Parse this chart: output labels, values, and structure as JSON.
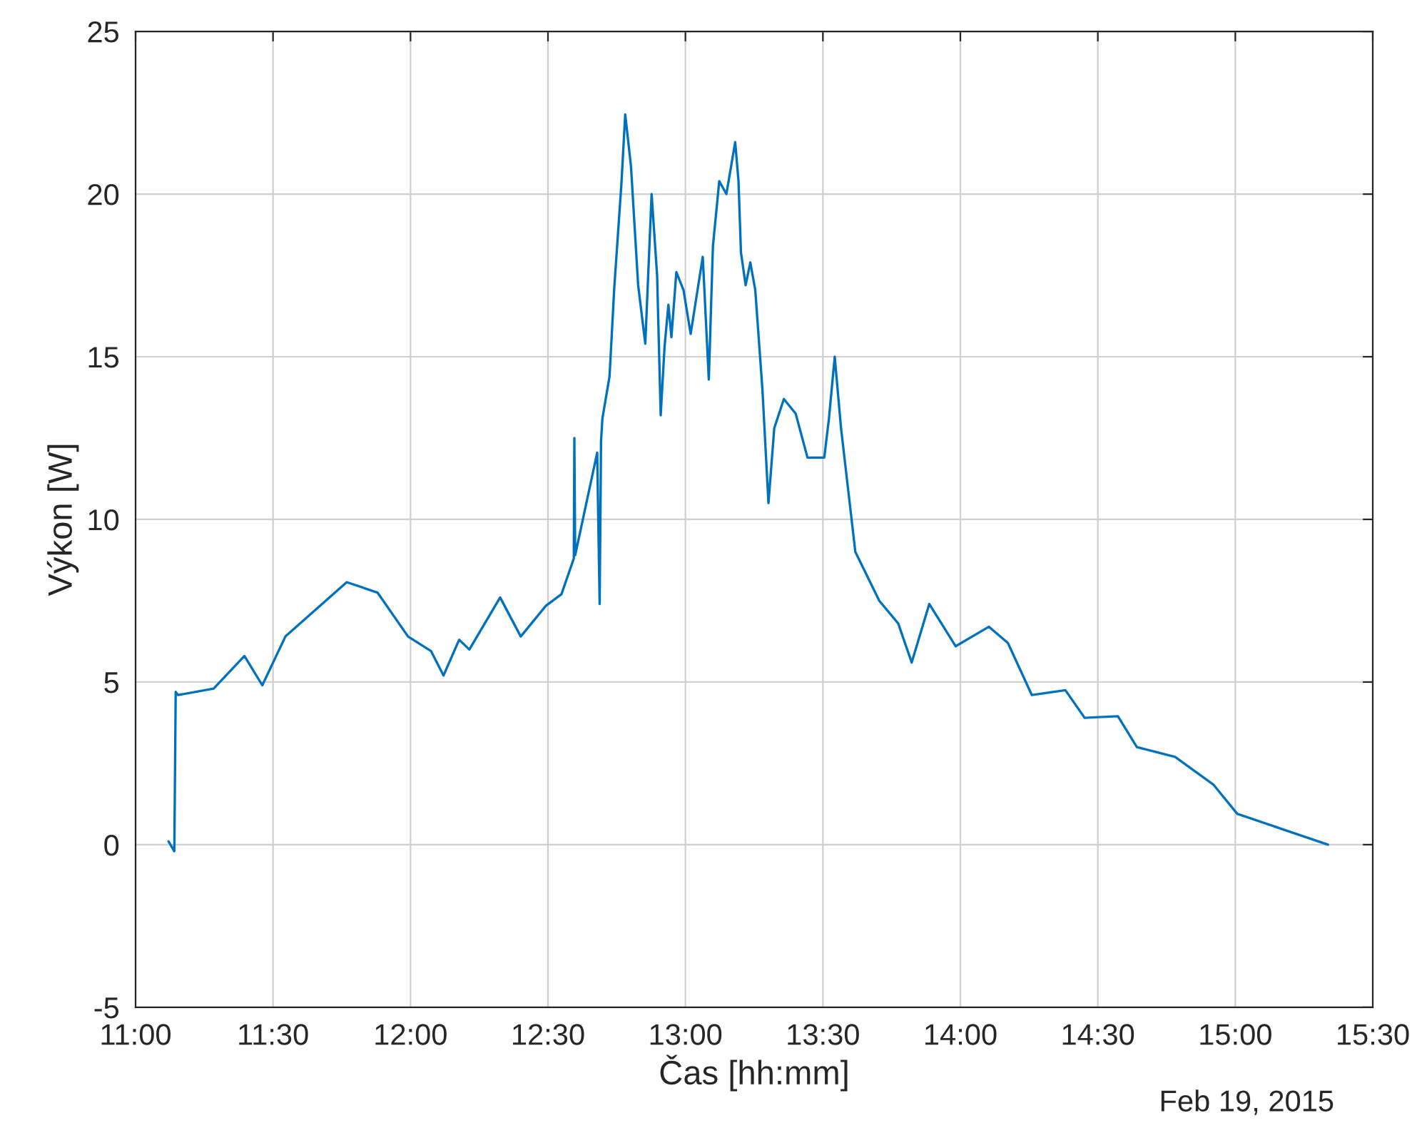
{
  "chart_data": {
    "type": "line",
    "xlabel": "Čas [hh:mm]",
    "ylabel": "Výkon [W]",
    "annotations": [
      "Feb 19, 2015"
    ],
    "x": [
      11.12,
      11.141,
      11.146,
      11.154,
      11.284,
      11.396,
      11.461,
      11.545,
      11.768,
      11.88,
      11.991,
      12.075,
      12.12,
      12.177,
      12.214,
      12.326,
      12.401,
      12.493,
      12.549,
      12.594,
      12.596,
      12.599,
      12.679,
      12.688,
      12.693,
      12.698,
      12.724,
      12.741,
      12.767,
      12.781,
      12.802,
      12.828,
      12.854,
      12.877,
      12.897,
      12.91,
      12.924,
      12.938,
      12.949,
      12.967,
      12.993,
      13.019,
      13.063,
      13.085,
      13.1,
      13.123,
      13.149,
      13.181,
      13.193,
      13.202,
      13.219,
      13.236,
      13.254,
      13.28,
      13.302,
      13.323,
      13.358,
      13.401,
      13.444,
      13.505,
      13.522,
      13.543,
      13.566,
      13.618,
      13.705,
      13.774,
      13.823,
      13.887,
      13.983,
      14.104,
      14.173,
      14.26,
      14.382,
      14.452,
      14.573,
      14.642,
      14.781,
      14.92,
      15.007,
      15.163,
      15.337
    ],
    "series": [
      {
        "color": "#0072bd",
        "values": [
          0.1,
          -0.2,
          4.7,
          4.6,
          4.8,
          5.8,
          4.9,
          6.4,
          8.07,
          7.75,
          6.4,
          5.95,
          5.2,
          6.3,
          6.0,
          7.6,
          6.4,
          7.35,
          7.7,
          8.8,
          12.5,
          8.9,
          12.05,
          7.4,
          12.4,
          13.1,
          14.4,
          17.1,
          20.3,
          22.45,
          20.85,
          17.2,
          15.4,
          20.0,
          17.5,
          13.2,
          15.3,
          16.6,
          15.6,
          17.6,
          17.05,
          15.7,
          18.07,
          14.3,
          18.4,
          20.4,
          20.0,
          21.6,
          20.4,
          18.2,
          17.2,
          17.9,
          17.05,
          14.0,
          10.5,
          12.8,
          13.7,
          13.25,
          11.9,
          11.9,
          13.1,
          15.0,
          12.8,
          9.0,
          7.5,
          6.8,
          5.6,
          7.4,
          6.1,
          6.7,
          6.2,
          4.6,
          4.75,
          3.9,
          3.95,
          3.0,
          2.7,
          1.85,
          0.95,
          0.5,
          0.0
        ]
      }
    ],
    "xlim": [
      11.0,
      15.5
    ],
    "xticks": [
      {
        "value": 11.0,
        "label": "11:00"
      },
      {
        "value": 11.5,
        "label": "11:30"
      },
      {
        "value": 12.0,
        "label": "12:00"
      },
      {
        "value": 12.5,
        "label": "12:30"
      },
      {
        "value": 13.0,
        "label": "13:00"
      },
      {
        "value": 13.5,
        "label": "13:30"
      },
      {
        "value": 14.0,
        "label": "14:00"
      },
      {
        "value": 14.5,
        "label": "14:30"
      },
      {
        "value": 15.0,
        "label": "15:00"
      },
      {
        "value": 15.5,
        "label": "15:30"
      }
    ],
    "ylim": [
      -5,
      25
    ],
    "yticks": [
      -5,
      0,
      5,
      10,
      15,
      20,
      25
    ],
    "grid": true,
    "legend": false,
    "marker": "none",
    "line_style": "solid"
  }
}
